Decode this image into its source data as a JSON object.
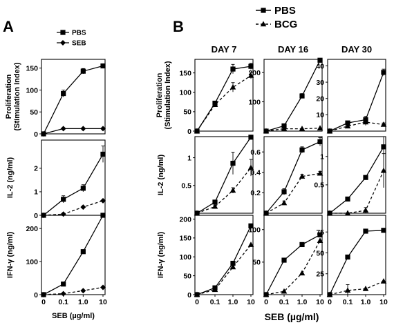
{
  "panel_a_letter": "A",
  "panel_b_letter": "B",
  "chart_data": [
    {
      "panel": "A",
      "type": "line",
      "x_tick_labels": [
        "0",
        "0.1",
        "1.0",
        "10"
      ],
      "xlabel": "SEB (µg/ml)",
      "legend": [
        {
          "name": "PBS",
          "marker": "square",
          "dash": false
        },
        {
          "name": "SEB",
          "marker": "diamond",
          "dash": false
        }
      ],
      "rows": [
        {
          "ylabel": [
            "Proliferation",
            "(Stimulation Index)"
          ],
          "ylim": [
            0,
            170
          ],
          "yticks": [
            0,
            50,
            100,
            150
          ],
          "series": [
            {
              "name": "PBS",
              "values": [
                0,
                92,
                143,
                155
              ],
              "errors": [
                0,
                8,
                6,
                4
              ]
            },
            {
              "name": "SEB",
              "values": [
                0,
                12,
                12,
                12
              ],
              "errors": [
                0,
                1,
                1,
                1
              ]
            }
          ]
        },
        {
          "ylabel": [
            "IL-2 (ng/ml)"
          ],
          "ylim": [
            0,
            3.2
          ],
          "yticks": [
            0,
            1,
            2
          ],
          "series": [
            {
              "name": "PBS",
              "values": [
                0,
                0.68,
                1.15,
                2.6
              ],
              "errors": [
                0,
                0.15,
                0.15,
                0.35
              ]
            },
            {
              "name": "SEB",
              "values": [
                0,
                0.05,
                0.35,
                0.62
              ],
              "errors": [
                0,
                0,
                0,
                0
              ],
              "dashed": true
            }
          ]
        },
        {
          "ylabel": [
            "IFN-γ (ng/ml)"
          ],
          "ylim": [
            0,
            240
          ],
          "yticks": [
            0,
            100,
            200
          ],
          "series": [
            {
              "name": "PBS",
              "values": [
                0,
                32,
                130,
                240
              ],
              "errors": [
                0,
                0,
                0,
                0
              ]
            },
            {
              "name": "SEB",
              "values": [
                0,
                3,
                12,
                22
              ],
              "errors": [
                0,
                0,
                0,
                0
              ],
              "dashed": true
            }
          ]
        }
      ]
    },
    {
      "panel": "B",
      "type": "line",
      "x_tick_labels": [
        "0",
        "0.1",
        "1.0",
        "10"
      ],
      "xlabel": "SEB (µg/ml)",
      "legend": [
        {
          "name": "PBS",
          "marker": "square",
          "dash": false
        },
        {
          "name": "BCG",
          "marker": "triangle",
          "dash": true
        }
      ],
      "columns": [
        {
          "title": "DAY 7",
          "rows": [
            {
              "ylim": [
                0,
                185
              ],
              "yticks": [
                0,
                50,
                100,
                150
              ],
              "series": [
                {
                  "name": "PBS",
                  "values": [
                    0,
                    72,
                    160,
                    167
                  ],
                  "errors": [
                    0,
                    3,
                    12,
                    8
                  ]
                },
                {
                  "name": "BCG",
                  "values": [
                    0,
                    68,
                    113,
                    143
                  ],
                  "errors": [
                    0,
                    3,
                    12,
                    8
                  ]
                }
              ]
            },
            {
              "ylim": [
                0,
                1.38
              ],
              "yticks": [
                0.5,
                1.0
              ],
              "series": [
                {
                  "name": "PBS",
                  "values": [
                    0,
                    0.2,
                    0.9,
                    1.37
                  ],
                  "errors": [
                    0,
                    0.03,
                    0.2,
                    0
                  ]
                },
                {
                  "name": "BCG",
                  "values": [
                    0,
                    0.12,
                    0.41,
                    0.82
                  ],
                  "errors": [
                    0,
                    0.02,
                    0.05,
                    0.15
                  ]
                }
              ]
            },
            {
              "ylim": [
                0,
                210
              ],
              "yticks": [
                0,
                50,
                100,
                150,
                200
              ],
              "series": [
                {
                  "name": "PBS",
                  "values": [
                    0,
                    18,
                    83,
                    182
                  ],
                  "errors": [
                    0,
                    0,
                    0,
                    0
                  ]
                },
                {
                  "name": "BCG",
                  "values": [
                    0,
                    13,
                    73,
                    132
                  ],
                  "errors": [
                    0,
                    0,
                    0,
                    0
                  ]
                }
              ]
            }
          ]
        },
        {
          "title": "DAY 16",
          "rows": [
            {
              "ylim": [
                0,
                245
              ],
              "yticks": [
                100,
                200
              ],
              "series": [
                {
                  "name": "PBS",
                  "values": [
                    0,
                    18,
                    120,
                    242
                  ],
                  "errors": [
                    0,
                    0,
                    8,
                    0
                  ]
                },
                {
                  "name": "BCG",
                  "values": [
                    0,
                    8,
                    8,
                    10
                  ],
                  "errors": [
                    0,
                    0,
                    0,
                    0
                  ]
                }
              ]
            },
            {
              "ylim": [
                0,
                0.75
              ],
              "yticks": [
                0.2,
                0.4,
                0.6
              ],
              "series": [
                {
                  "name": "PBS",
                  "values": [
                    0,
                    0.21,
                    0.62,
                    0.7
                  ],
                  "errors": [
                    0,
                    0.03,
                    0.03,
                    0.04
                  ]
                },
                {
                  "name": "BCG",
                  "values": [
                    0,
                    0.1,
                    0.36,
                    0.39
                  ],
                  "errors": [
                    0,
                    0.02,
                    0.02,
                    0.02
                  ]
                }
              ]
            },
            {
              "ylim": [
                0,
                122
              ],
              "yticks": [
                50,
                100
              ],
              "series": [
                {
                  "name": "PBS",
                  "values": [
                    0,
                    53,
                    77,
                    92
                  ],
                  "errors": [
                    0,
                    0,
                    0,
                    0
                  ]
                },
                {
                  "name": "BCG",
                  "values": [
                    0,
                    5,
                    33,
                    83
                  ],
                  "errors": [
                    0,
                    0,
                    0,
                    0
                  ]
                }
              ]
            }
          ]
        },
        {
          "title": "DAY 30",
          "rows": [
            {
              "ylim": [
                0,
                44
              ],
              "yticks": [
                10,
                20,
                30,
                40
              ],
              "series": [
                {
                  "name": "PBS",
                  "values": [
                    0,
                    5,
                    7,
                    36
                  ],
                  "errors": [
                    0,
                    0,
                    2,
                    2
                  ]
                },
                {
                  "name": "BCG",
                  "values": [
                    0,
                    3,
                    5.5,
                    4
                  ],
                  "errors": [
                    0,
                    0,
                    2,
                    1
                  ]
                }
              ]
            },
            {
              "ylim": [
                0,
                1.35
              ],
              "yticks": [
                0.5,
                1.0
              ],
              "series": [
                {
                  "name": "PBS",
                  "values": [
                    0,
                    0.25,
                    0.63,
                    1.17
                  ],
                  "errors": [
                    0,
                    0,
                    0,
                    0.18
                  ]
                },
                {
                  "name": "BCG",
                  "values": [
                    0,
                    0,
                    0.05,
                    0.75
                  ],
                  "errors": [
                    0,
                    0,
                    0.05,
                    0.3
                  ]
                }
              ]
            },
            {
              "ylim": [
                0,
                95
              ],
              "yticks": [
                25,
                50,
                75
              ],
              "series": [
                {
                  "name": "PBS",
                  "values": [
                    0,
                    45,
                    76,
                    77
                  ],
                  "errors": [
                    0,
                    0,
                    0,
                    0
                  ]
                },
                {
                  "name": "BCG",
                  "values": [
                    0,
                    5,
                    7,
                    16
                  ],
                  "errors": [
                    0,
                    7,
                    0,
                    0
                  ]
                }
              ]
            }
          ]
        }
      ],
      "ylabels": [
        [
          "Proliferation",
          "(Stimulation Index)"
        ],
        [
          "IL-2 (ng/ml)"
        ],
        [
          "IFN-γ (ng/ml)"
        ]
      ]
    }
  ]
}
